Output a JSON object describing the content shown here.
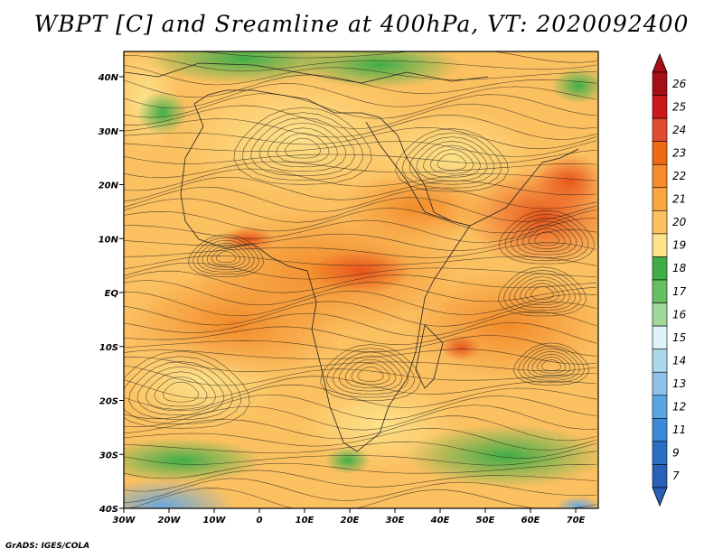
{
  "title": "WBPT [C] and Sreamline at 400hPa, VT: 2020092400",
  "credit": "GrADS: IGES/COLA",
  "map": {
    "lon_range": [
      -30,
      75
    ],
    "lat_range": [
      -40,
      45
    ],
    "lat_ticks": [
      "40N",
      "30N",
      "20N",
      "10N",
      "EQ",
      "10S",
      "20S",
      "30S",
      "40S"
    ],
    "lon_ticks": [
      "30W",
      "20W",
      "10W",
      "0",
      "10E",
      "20E",
      "30E",
      "40E",
      "50E",
      "60E",
      "70E"
    ]
  },
  "colorbar": {
    "levels": [
      "26",
      "25",
      "24",
      "23",
      "22",
      "21",
      "20",
      "19",
      "18",
      "17",
      "16",
      "15",
      "14",
      "13",
      "12",
      "11",
      "9",
      "7"
    ],
    "colors": [
      "#a50f15",
      "#cb181d",
      "#e34a33",
      "#f16913",
      "#f68a2c",
      "#f9a640",
      "#fbc060",
      "#fde28a",
      "#3fae49",
      "#66c061",
      "#a1d99b",
      "#e0f3f8",
      "#abd9e9",
      "#8ec2ea",
      "#5aa6e0",
      "#3d89d6",
      "#2b6fc4",
      "#2a5fb8"
    ]
  }
}
